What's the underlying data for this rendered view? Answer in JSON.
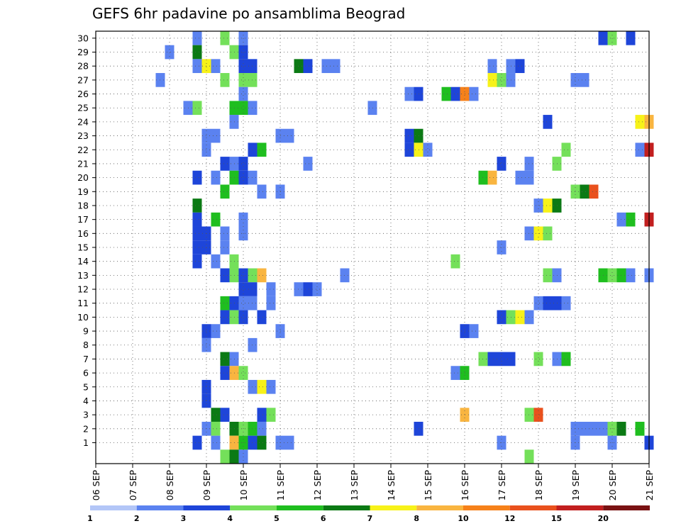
{
  "chart_data": {
    "type": "heatmap",
    "title": "GEFS 6hr padavine po ansamblima Beograd",
    "xlabel": "",
    "ylabel": "",
    "x_ticks": [
      "06 SEP",
      "07 SEP",
      "08 SEP",
      "09 SEP",
      "10 SEP",
      "11 SEP",
      "12 SEP",
      "13 SEP",
      "14 SEP",
      "15 SEP",
      "16 SEP",
      "17 SEP",
      "18 SEP",
      "19 SEP",
      "20 SEP",
      "21 SEP"
    ],
    "x_step_hours": 6,
    "x_steps": 60,
    "y_ticks": [
      1,
      2,
      3,
      4,
      5,
      6,
      7,
      8,
      9,
      10,
      11,
      12,
      13,
      14,
      15,
      16,
      17,
      18,
      19,
      20,
      21,
      22,
      23,
      24,
      25,
      26,
      27,
      28,
      29,
      30
    ],
    "grid": true,
    "colorbar": {
      "labels": [
        "1",
        "2",
        "3",
        "4",
        "5",
        "6",
        "7",
        "8",
        "10",
        "12",
        "15",
        "20"
      ],
      "colors": [
        "#b3c6f7",
        "#5b82f0",
        "#1e45d9",
        "#74e05a",
        "#1fbe1f",
        "#0b7a14",
        "#f7f219",
        "#f9b540",
        "#f6811a",
        "#e9511d",
        "#c21f1f",
        "#7a1213"
      ]
    },
    "cells": [
      [
        11,
        30,
        1
      ],
      [
        14,
        30,
        3
      ],
      [
        16,
        30,
        1
      ],
      [
        55,
        30,
        2
      ],
      [
        56,
        30,
        3
      ],
      [
        58,
        30,
        2
      ],
      [
        8,
        29,
        1
      ],
      [
        11,
        29,
        5
      ],
      [
        15,
        29,
        3
      ],
      [
        16,
        29,
        2
      ],
      [
        11,
        28,
        1
      ],
      [
        12,
        28,
        6
      ],
      [
        13,
        28,
        1
      ],
      [
        16,
        28,
        2
      ],
      [
        17,
        28,
        2
      ],
      [
        22,
        28,
        5
      ],
      [
        23,
        28,
        2
      ],
      [
        25,
        28,
        1
      ],
      [
        26,
        28,
        1
      ],
      [
        43,
        28,
        1
      ],
      [
        45,
        28,
        1
      ],
      [
        46,
        28,
        2
      ],
      [
        7,
        27,
        1
      ],
      [
        14,
        27,
        3
      ],
      [
        16,
        27,
        3
      ],
      [
        17,
        27,
        3
      ],
      [
        43,
        27,
        6
      ],
      [
        44,
        27,
        3
      ],
      [
        45,
        27,
        1
      ],
      [
        52,
        27,
        1
      ],
      [
        53,
        27,
        1
      ],
      [
        16,
        26,
        1
      ],
      [
        34,
        26,
        1
      ],
      [
        35,
        26,
        2
      ],
      [
        38,
        26,
        4
      ],
      [
        39,
        26,
        2
      ],
      [
        40,
        26,
        8
      ],
      [
        41,
        26,
        1
      ],
      [
        10,
        25,
        1
      ],
      [
        11,
        25,
        3
      ],
      [
        15,
        25,
        4
      ],
      [
        16,
        25,
        4
      ],
      [
        17,
        25,
        1
      ],
      [
        30,
        25,
        1
      ],
      [
        15,
        24,
        1
      ],
      [
        49,
        24,
        2
      ],
      [
        59,
        24,
        6
      ],
      [
        60,
        24,
        7
      ],
      [
        12,
        23,
        1
      ],
      [
        13,
        23,
        1
      ],
      [
        20,
        23,
        1
      ],
      [
        21,
        23,
        1
      ],
      [
        34,
        23,
        2
      ],
      [
        35,
        23,
        5
      ],
      [
        12,
        22,
        1
      ],
      [
        17,
        22,
        2
      ],
      [
        18,
        22,
        4
      ],
      [
        34,
        22,
        2
      ],
      [
        35,
        22,
        6
      ],
      [
        36,
        22,
        1
      ],
      [
        51,
        22,
        3
      ],
      [
        59,
        22,
        1
      ],
      [
        60,
        22,
        10
      ],
      [
        14,
        21,
        2
      ],
      [
        15,
        21,
        1
      ],
      [
        16,
        21,
        2
      ],
      [
        23,
        21,
        1
      ],
      [
        44,
        21,
        2
      ],
      [
        47,
        21,
        1
      ],
      [
        50,
        21,
        3
      ],
      [
        11,
        20,
        2
      ],
      [
        13,
        20,
        1
      ],
      [
        15,
        20,
        4
      ],
      [
        16,
        20,
        2
      ],
      [
        17,
        20,
        1
      ],
      [
        42,
        20,
        4
      ],
      [
        43,
        20,
        7
      ],
      [
        46,
        20,
        1
      ],
      [
        47,
        20,
        1
      ],
      [
        14,
        19,
        4
      ],
      [
        18,
        19,
        1
      ],
      [
        20,
        19,
        1
      ],
      [
        52,
        19,
        3
      ],
      [
        53,
        19,
        5
      ],
      [
        54,
        19,
        9
      ],
      [
        11,
        18,
        5
      ],
      [
        48,
        18,
        1
      ],
      [
        49,
        18,
        6
      ],
      [
        50,
        18,
        5
      ],
      [
        11,
        17,
        2
      ],
      [
        13,
        17,
        4
      ],
      [
        16,
        17,
        1
      ],
      [
        57,
        17,
        1
      ],
      [
        58,
        17,
        4
      ],
      [
        60,
        17,
        10
      ],
      [
        11,
        16,
        2
      ],
      [
        12,
        16,
        2
      ],
      [
        14,
        16,
        1
      ],
      [
        16,
        16,
        1
      ],
      [
        47,
        16,
        1
      ],
      [
        48,
        16,
        6
      ],
      [
        49,
        16,
        3
      ],
      [
        11,
        15,
        2
      ],
      [
        12,
        15,
        2
      ],
      [
        14,
        15,
        1
      ],
      [
        44,
        15,
        1
      ],
      [
        11,
        14,
        2
      ],
      [
        13,
        14,
        1
      ],
      [
        15,
        14,
        3
      ],
      [
        39,
        14,
        3
      ],
      [
        14,
        13,
        2
      ],
      [
        15,
        13,
        3
      ],
      [
        16,
        13,
        2
      ],
      [
        17,
        13,
        3
      ],
      [
        18,
        13,
        7
      ],
      [
        27,
        13,
        1
      ],
      [
        49,
        13,
        3
      ],
      [
        50,
        13,
        1
      ],
      [
        55,
        13,
        4
      ],
      [
        56,
        13,
        3
      ],
      [
        57,
        13,
        4
      ],
      [
        58,
        13,
        1
      ],
      [
        60,
        13,
        1
      ],
      [
        16,
        12,
        2
      ],
      [
        17,
        12,
        2
      ],
      [
        19,
        12,
        1
      ],
      [
        22,
        12,
        1
      ],
      [
        23,
        12,
        2
      ],
      [
        24,
        12,
        1
      ],
      [
        14,
        11,
        4
      ],
      [
        15,
        11,
        2
      ],
      [
        16,
        11,
        1
      ],
      [
        17,
        11,
        1
      ],
      [
        19,
        11,
        1
      ],
      [
        48,
        11,
        1
      ],
      [
        49,
        11,
        2
      ],
      [
        50,
        11,
        2
      ],
      [
        51,
        11,
        1
      ],
      [
        14,
        10,
        2
      ],
      [
        15,
        10,
        3
      ],
      [
        16,
        10,
        2
      ],
      [
        18,
        10,
        2
      ],
      [
        44,
        10,
        2
      ],
      [
        45,
        10,
        3
      ],
      [
        46,
        10,
        6
      ],
      [
        47,
        10,
        1
      ],
      [
        12,
        9,
        2
      ],
      [
        13,
        9,
        1
      ],
      [
        20,
        9,
        1
      ],
      [
        40,
        9,
        2
      ],
      [
        41,
        9,
        1
      ],
      [
        12,
        8,
        1
      ],
      [
        17,
        8,
        1
      ],
      [
        14,
        7,
        5
      ],
      [
        15,
        7,
        1
      ],
      [
        42,
        7,
        3
      ],
      [
        43,
        7,
        2
      ],
      [
        44,
        7,
        2
      ],
      [
        45,
        7,
        2
      ],
      [
        48,
        7,
        3
      ],
      [
        50,
        7,
        1
      ],
      [
        51,
        7,
        4
      ],
      [
        14,
        6,
        2
      ],
      [
        15,
        6,
        7
      ],
      [
        16,
        6,
        3
      ],
      [
        39,
        6,
        1
      ],
      [
        40,
        6,
        4
      ],
      [
        12,
        5,
        2
      ],
      [
        17,
        5,
        1
      ],
      [
        18,
        5,
        6
      ],
      [
        19,
        5,
        1
      ],
      [
        12,
        4,
        2
      ],
      [
        13,
        3,
        5
      ],
      [
        14,
        3,
        2
      ],
      [
        18,
        3,
        2
      ],
      [
        19,
        3,
        3
      ],
      [
        40,
        3,
        7
      ],
      [
        47,
        3,
        3
      ],
      [
        48,
        3,
        9
      ],
      [
        12,
        2,
        1
      ],
      [
        13,
        2,
        3
      ],
      [
        15,
        2,
        5
      ],
      [
        16,
        2,
        3
      ],
      [
        17,
        2,
        4
      ],
      [
        18,
        2,
        1
      ],
      [
        35,
        2,
        2
      ],
      [
        52,
        2,
        1
      ],
      [
        53,
        2,
        1
      ],
      [
        54,
        2,
        1
      ],
      [
        55,
        2,
        1
      ],
      [
        56,
        2,
        3
      ],
      [
        57,
        2,
        5
      ],
      [
        59,
        2,
        4
      ],
      [
        11,
        1,
        2
      ],
      [
        13,
        1,
        1
      ],
      [
        15,
        1,
        7
      ],
      [
        16,
        1,
        4
      ],
      [
        17,
        1,
        2
      ],
      [
        18,
        1,
        5
      ],
      [
        20,
        1,
        1
      ],
      [
        21,
        1,
        1
      ],
      [
        44,
        1,
        1
      ],
      [
        52,
        1,
        1
      ],
      [
        56,
        1,
        1
      ],
      [
        60,
        1,
        2
      ],
      [
        14,
        0,
        3
      ],
      [
        15,
        0,
        5
      ],
      [
        16,
        0,
        1
      ],
      [
        47,
        0,
        3
      ]
    ]
  }
}
